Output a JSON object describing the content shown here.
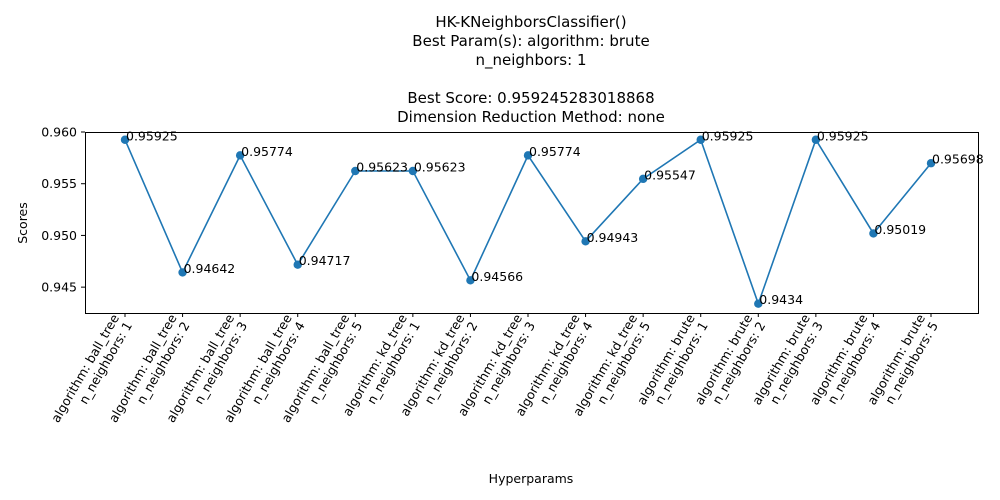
{
  "chart_data": {
    "type": "line",
    "title_lines": [
      "HK-KNeighborsClassifier()",
      "Best Param(s): algorithm: brute",
      "n_neighbors: 1",
      "",
      "Best Score: 0.959245283018868",
      "Dimension Reduction Method: none"
    ],
    "xlabel": "Hyperparams",
    "ylabel": "Scores",
    "ylim": [
      0.9425,
      0.96
    ],
    "yticks": [
      "0.945",
      "0.950",
      "0.955",
      "0.960"
    ],
    "ytick_values": [
      0.945,
      0.95,
      0.955,
      0.96
    ],
    "categories": [
      [
        "algorithm: ball_tree",
        "n_neighbors: 1"
      ],
      [
        "algorithm: ball_tree",
        "n_neighbors: 2"
      ],
      [
        "algorithm: ball_tree",
        "n_neighbors: 3"
      ],
      [
        "algorithm: ball_tree",
        "n_neighbors: 4"
      ],
      [
        "algorithm: ball_tree",
        "n_neighbors: 5"
      ],
      [
        "algorithm: kd_tree",
        "n_neighbors: 1"
      ],
      [
        "algorithm: kd_tree",
        "n_neighbors: 2"
      ],
      [
        "algorithm: kd_tree",
        "n_neighbors: 3"
      ],
      [
        "algorithm: kd_tree",
        "n_neighbors: 4"
      ],
      [
        "algorithm: kd_tree",
        "n_neighbors: 5"
      ],
      [
        "algorithm: brute",
        "n_neighbors: 1"
      ],
      [
        "algorithm: brute",
        "n_neighbors: 2"
      ],
      [
        "algorithm: brute",
        "n_neighbors: 3"
      ],
      [
        "algorithm: brute",
        "n_neighbors: 4"
      ],
      [
        "algorithm: brute",
        "n_neighbors: 5"
      ]
    ],
    "values": [
      0.95925,
      0.94642,
      0.95774,
      0.94717,
      0.95623,
      0.95623,
      0.94566,
      0.95774,
      0.94943,
      0.95547,
      0.95925,
      0.9434,
      0.95925,
      0.95019,
      0.95698
    ],
    "data_labels": [
      "0.95925",
      "0.94642",
      "0.95774",
      "0.94717",
      "0.95623",
      "0.95623",
      "0.94566",
      "0.95774",
      "0.94943",
      "0.95547",
      "0.95925",
      "0.9434",
      "0.95925",
      "0.95019",
      "0.95698"
    ],
    "line_color": "#1f77b4",
    "grid": false,
    "legend": "none"
  }
}
